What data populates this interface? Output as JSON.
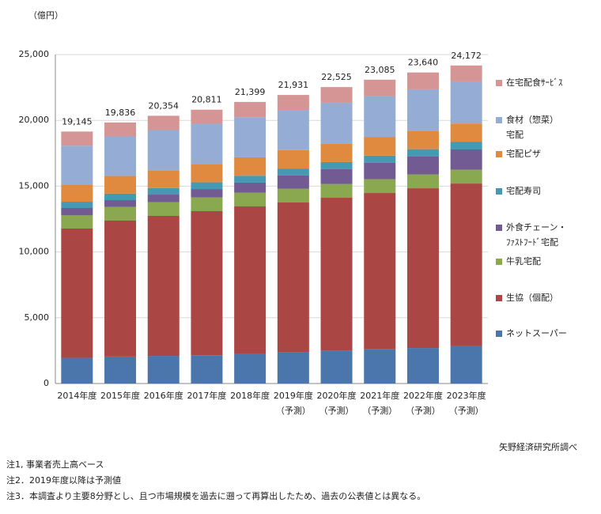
{
  "chart_data": {
    "type": "stacked_bar",
    "y_unit": "（億円）",
    "source": "矢野経済研究所調べ",
    "notes": [
      "注1, 事業者売上高ベース",
      "注2．2019年度以降は予測値",
      "注3．本調査より主要8分野とし、且つ市場規模を過去に遡って再算出したため、過去の公表値とは異なる。"
    ],
    "categories": [
      "2014年度",
      "2015年度",
      "2016年度",
      "2017年度",
      "2018年度",
      "2019年度\n（予測）",
      "2020年度\n（予測）",
      "2021年度\n（予測）",
      "2022年度\n（予測）",
      "2023年度\n（予測）"
    ],
    "totals": [
      19145,
      19836,
      20354,
      20811,
      21399,
      21931,
      22525,
      23085,
      23640,
      24172
    ],
    "total_labels": [
      "19,145",
      "19,836",
      "20,354",
      "20,811",
      "21,399",
      "21,931",
      "22,525",
      "23,085",
      "23,640",
      "24,172"
    ],
    "series": [
      {
        "name": "ネットスーパー",
        "color": "#4a76ac",
        "values": [
          1950,
          2050,
          2100,
          2150,
          2250,
          2400,
          2500,
          2600,
          2700,
          2850
        ]
      },
      {
        "name": "生協（個配）",
        "color": "#aa4644",
        "values": [
          9830,
          10330,
          10640,
          10950,
          11210,
          11360,
          11620,
          11880,
          12140,
          12350
        ]
      },
      {
        "name": "牛乳宅配",
        "color": "#8aa84f",
        "values": [
          1000,
          1050,
          1050,
          1050,
          1050,
          1050,
          1050,
          1050,
          1050,
          1050
        ]
      },
      {
        "name": "外食チェーン・\nﾌｧｽﾄﾌｰﾄﾞ宅配",
        "color": "#725a92",
        "values": [
          560,
          510,
          570,
          630,
          760,
          1000,
          1120,
          1240,
          1360,
          1540
        ]
      },
      {
        "name": "宅配寿司",
        "color": "#4499b3",
        "values": [
          480,
          490,
          500,
          510,
          520,
          530,
          540,
          550,
          560,
          570
        ]
      },
      {
        "name": "宅配ピザ",
        "color": "#e08a3f",
        "values": [
          1300,
          1350,
          1350,
          1400,
          1400,
          1400,
          1400,
          1400,
          1400,
          1400
        ]
      },
      {
        "name": "食材（惣菜）\n宅配",
        "color": "#95acd4",
        "values": [
          2950,
          3000,
          3050,
          3050,
          3050,
          3050,
          3100,
          3100,
          3150,
          3200
        ]
      },
      {
        "name": "在宅配食ｻｰﾋﾞｽ",
        "color": "#d59594",
        "values": [
          1080,
          1060,
          1090,
          1070,
          1160,
          1140,
          1200,
          1270,
          1280,
          1210
        ]
      }
    ],
    "ylim": [
      0,
      25000
    ],
    "yticks": [
      0,
      {
        "value": 5000,
        "label": "5,000"
      },
      {
        "value": 10000,
        "label": "10,000"
      },
      {
        "value": 15000,
        "label": "15,000"
      },
      {
        "value": 20000,
        "label": "20,000"
      },
      {
        "value": 25000,
        "label": "25,000"
      }
    ],
    "grid": true
  }
}
